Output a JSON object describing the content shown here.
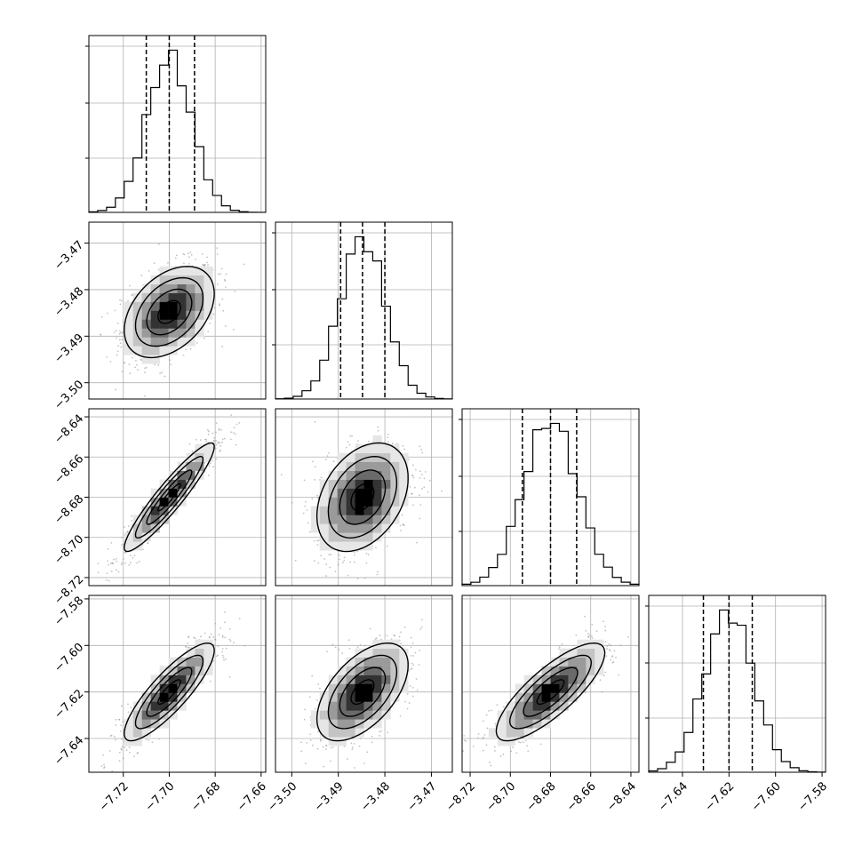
{
  "chart_data": {
    "type": "corner",
    "title": "",
    "params": [
      {
        "range": [
          -7.735,
          -7.658
        ],
        "ticks": [
          -7.72,
          -7.7,
          -7.68,
          -7.66
        ],
        "tick_labels": [
          "−7.72",
          "−7.70",
          "−7.68",
          "−7.66"
        ],
        "quantiles": [
          -7.71,
          -7.7,
          -7.689
        ],
        "median": -7.7,
        "sigma": 0.0098
      },
      {
        "range": [
          -3.5035,
          -3.4655
        ],
        "ticks": [
          -3.5,
          -3.49,
          -3.48,
          -3.47
        ],
        "tick_labels": [
          "−3.50",
          "−3.49",
          "−3.48",
          "−3.47"
        ],
        "quantiles": [
          -3.4895,
          -3.4848,
          -3.48
        ],
        "median": -3.4848,
        "sigma": 0.0049
      },
      {
        "range": [
          -8.724,
          -8.636
        ],
        "ticks": [
          -8.72,
          -8.7,
          -8.68,
          -8.66,
          -8.64
        ],
        "tick_labels": [
          "−8.72",
          "−8.70",
          "−8.68",
          "−8.66",
          "−8.64"
        ],
        "quantiles": [
          -8.694,
          -8.68,
          -8.667
        ],
        "median": -8.68,
        "sigma": 0.0135
      },
      {
        "range": [
          -7.6545,
          -7.5785
        ],
        "ticks": [
          -7.64,
          -7.62,
          -7.6,
          -7.58
        ],
        "tick_labels": [
          "−7.64",
          "−7.62",
          "−7.60",
          "−7.58"
        ],
        "quantiles": [
          -7.631,
          -7.62,
          -7.61
        ],
        "median": -7.62,
        "sigma": 0.0105
      }
    ],
    "correlations": [
      {
        "i": 1,
        "j": 0,
        "rho": 0.4
      },
      {
        "i": 2,
        "j": 0,
        "rho": 0.93
      },
      {
        "i": 2,
        "j": 1,
        "rho": 0.35
      },
      {
        "i": 3,
        "j": 0,
        "rho": 0.85
      },
      {
        "i": 3,
        "j": 1,
        "rho": 0.55
      },
      {
        "i": 3,
        "j": 2,
        "rho": 0.8
      }
    ],
    "histogram_bins": 20,
    "contour_levels_sigma": [
      0.5,
      1.0,
      1.5,
      2.0
    ],
    "grid": true,
    "colors": {
      "marks": "#000000",
      "grid": "#b0b0b0",
      "points": "#9a9a9a"
    }
  }
}
